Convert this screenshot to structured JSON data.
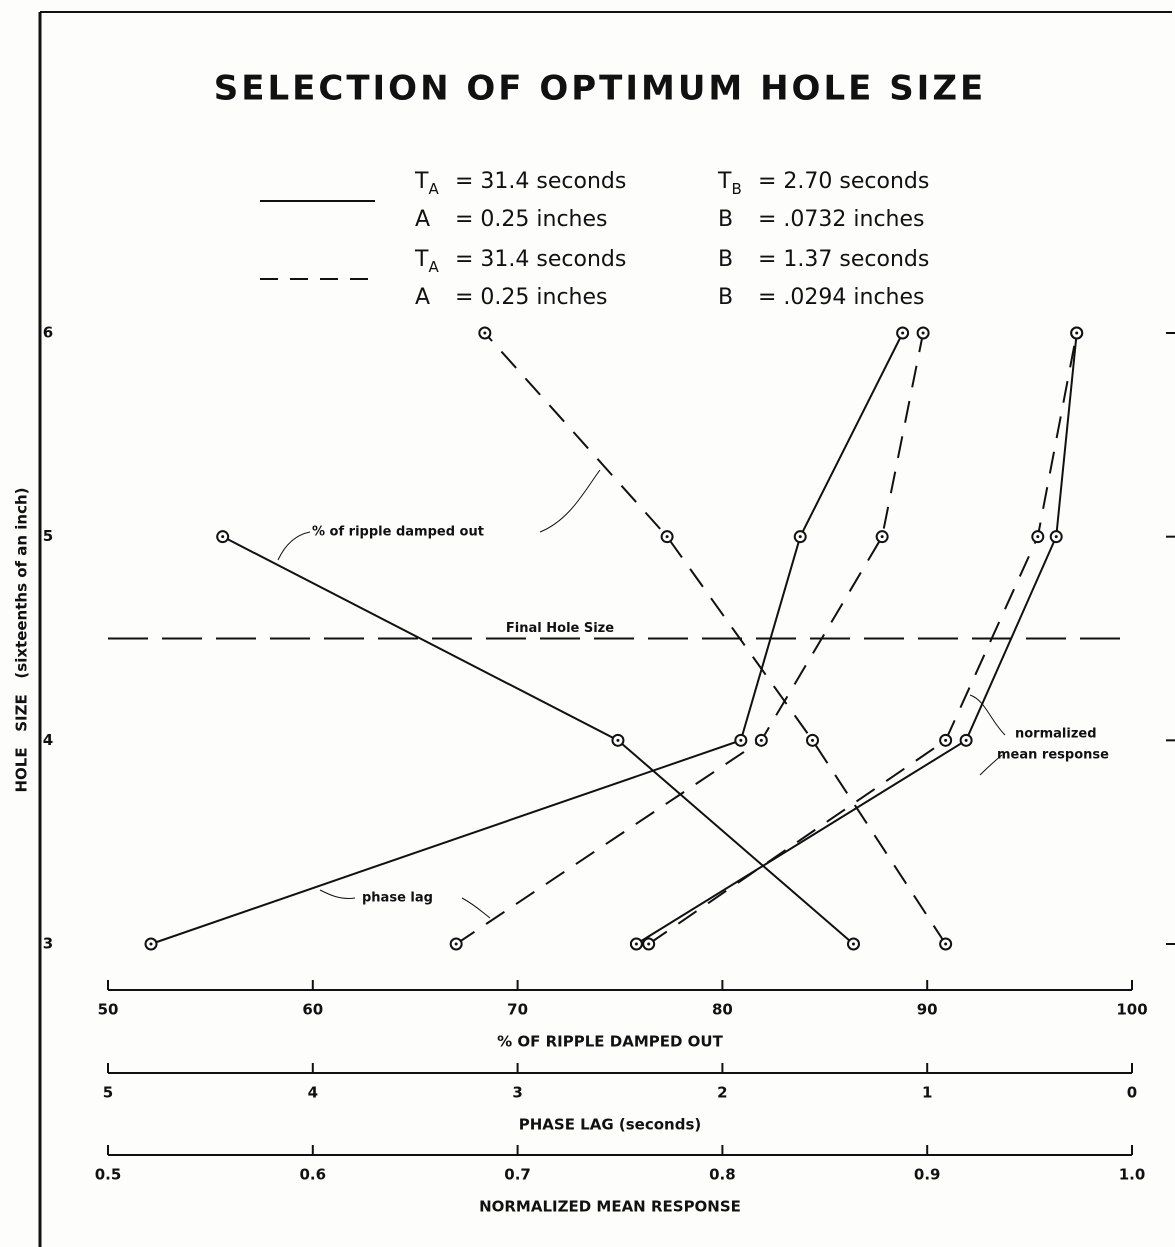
{
  "chart_data": {
    "type": "line",
    "title": "SELECTION OF OPTIMUM HOLE SIZE",
    "legend": [
      {
        "style": "solid",
        "items": [
          {
            "symbol": "T",
            "sub": "A",
            "text": "= 31.4 seconds"
          },
          {
            "symbol": "T",
            "sub": "B",
            "text": "= 2.70 seconds"
          },
          {
            "symbol": "A",
            "text": "= 0.25 inches"
          },
          {
            "symbol": "B",
            "text": "= .0732 inches"
          }
        ]
      },
      {
        "style": "dashed",
        "items": [
          {
            "symbol": "T",
            "sub": "A",
            "text": "= 31.4 seconds"
          },
          {
            "symbol": "B",
            "text": "= 1.37 seconds"
          },
          {
            "symbol": "A",
            "text": "= 0.25 inches"
          },
          {
            "symbol": "B",
            "text": "= .0294 inches"
          }
        ]
      }
    ],
    "y_label": "HOLE   SIZE   (sixteenths of an inch)",
    "y": [
      3,
      4,
      5,
      6
    ],
    "ylim": [
      3,
      6
    ],
    "yticks": [
      3,
      4,
      5,
      6
    ],
    "x_axes": [
      {
        "id": "ripple",
        "label": "%   OF   RIPPLE   DAMPED   OUT",
        "xlim": [
          50,
          100
        ],
        "xticks": [
          50,
          60,
          70,
          80,
          90,
          100
        ]
      },
      {
        "id": "lag",
        "label": "PHASE   LAG   (seconds)",
        "xlim": [
          5,
          0
        ],
        "xticks": [
          5,
          4,
          3,
          2,
          1,
          0
        ]
      },
      {
        "id": "nmr",
        "label": "NORMALIZED   MEAN   RESPONSE",
        "xlim": [
          0.5,
          1.0
        ],
        "xticks": [
          0.5,
          0.6,
          0.7,
          0.8,
          0.9,
          {
            "value": 1.0,
            "label": "1.0"
          }
        ]
      }
    ],
    "series": [
      {
        "axis": "ripple",
        "style": "solid",
        "color": "#111111",
        "values": [
          86.4,
          74.9,
          55.6,
          null
        ]
      },
      {
        "axis": "ripple",
        "style": "dashed",
        "color": "#111111",
        "values": [
          90.9,
          84.4,
          77.3,
          68.4
        ]
      },
      {
        "axis": "lag",
        "style": "solid",
        "color": "#111111",
        "values": [
          4.79,
          1.91,
          1.62,
          1.12
        ]
      },
      {
        "axis": "lag",
        "style": "dashed",
        "color": "#111111",
        "values": [
          3.3,
          1.81,
          1.22,
          1.02
        ]
      },
      {
        "axis": "nmr",
        "style": "solid",
        "color": "#111111",
        "values": [
          0.758,
          0.919,
          0.963,
          0.973
        ]
      },
      {
        "axis": "nmr",
        "style": "dashed",
        "color": "#111111",
        "values": [
          0.764,
          0.909,
          0.954,
          0.973
        ]
      }
    ],
    "reference_line": {
      "value": 4.5,
      "label": "Final     Hole     Size"
    },
    "annotations": {
      "ripple": "% of ripple damped out",
      "lag": "phase lag",
      "nmr": [
        "normalized",
        "mean response"
      ]
    }
  }
}
